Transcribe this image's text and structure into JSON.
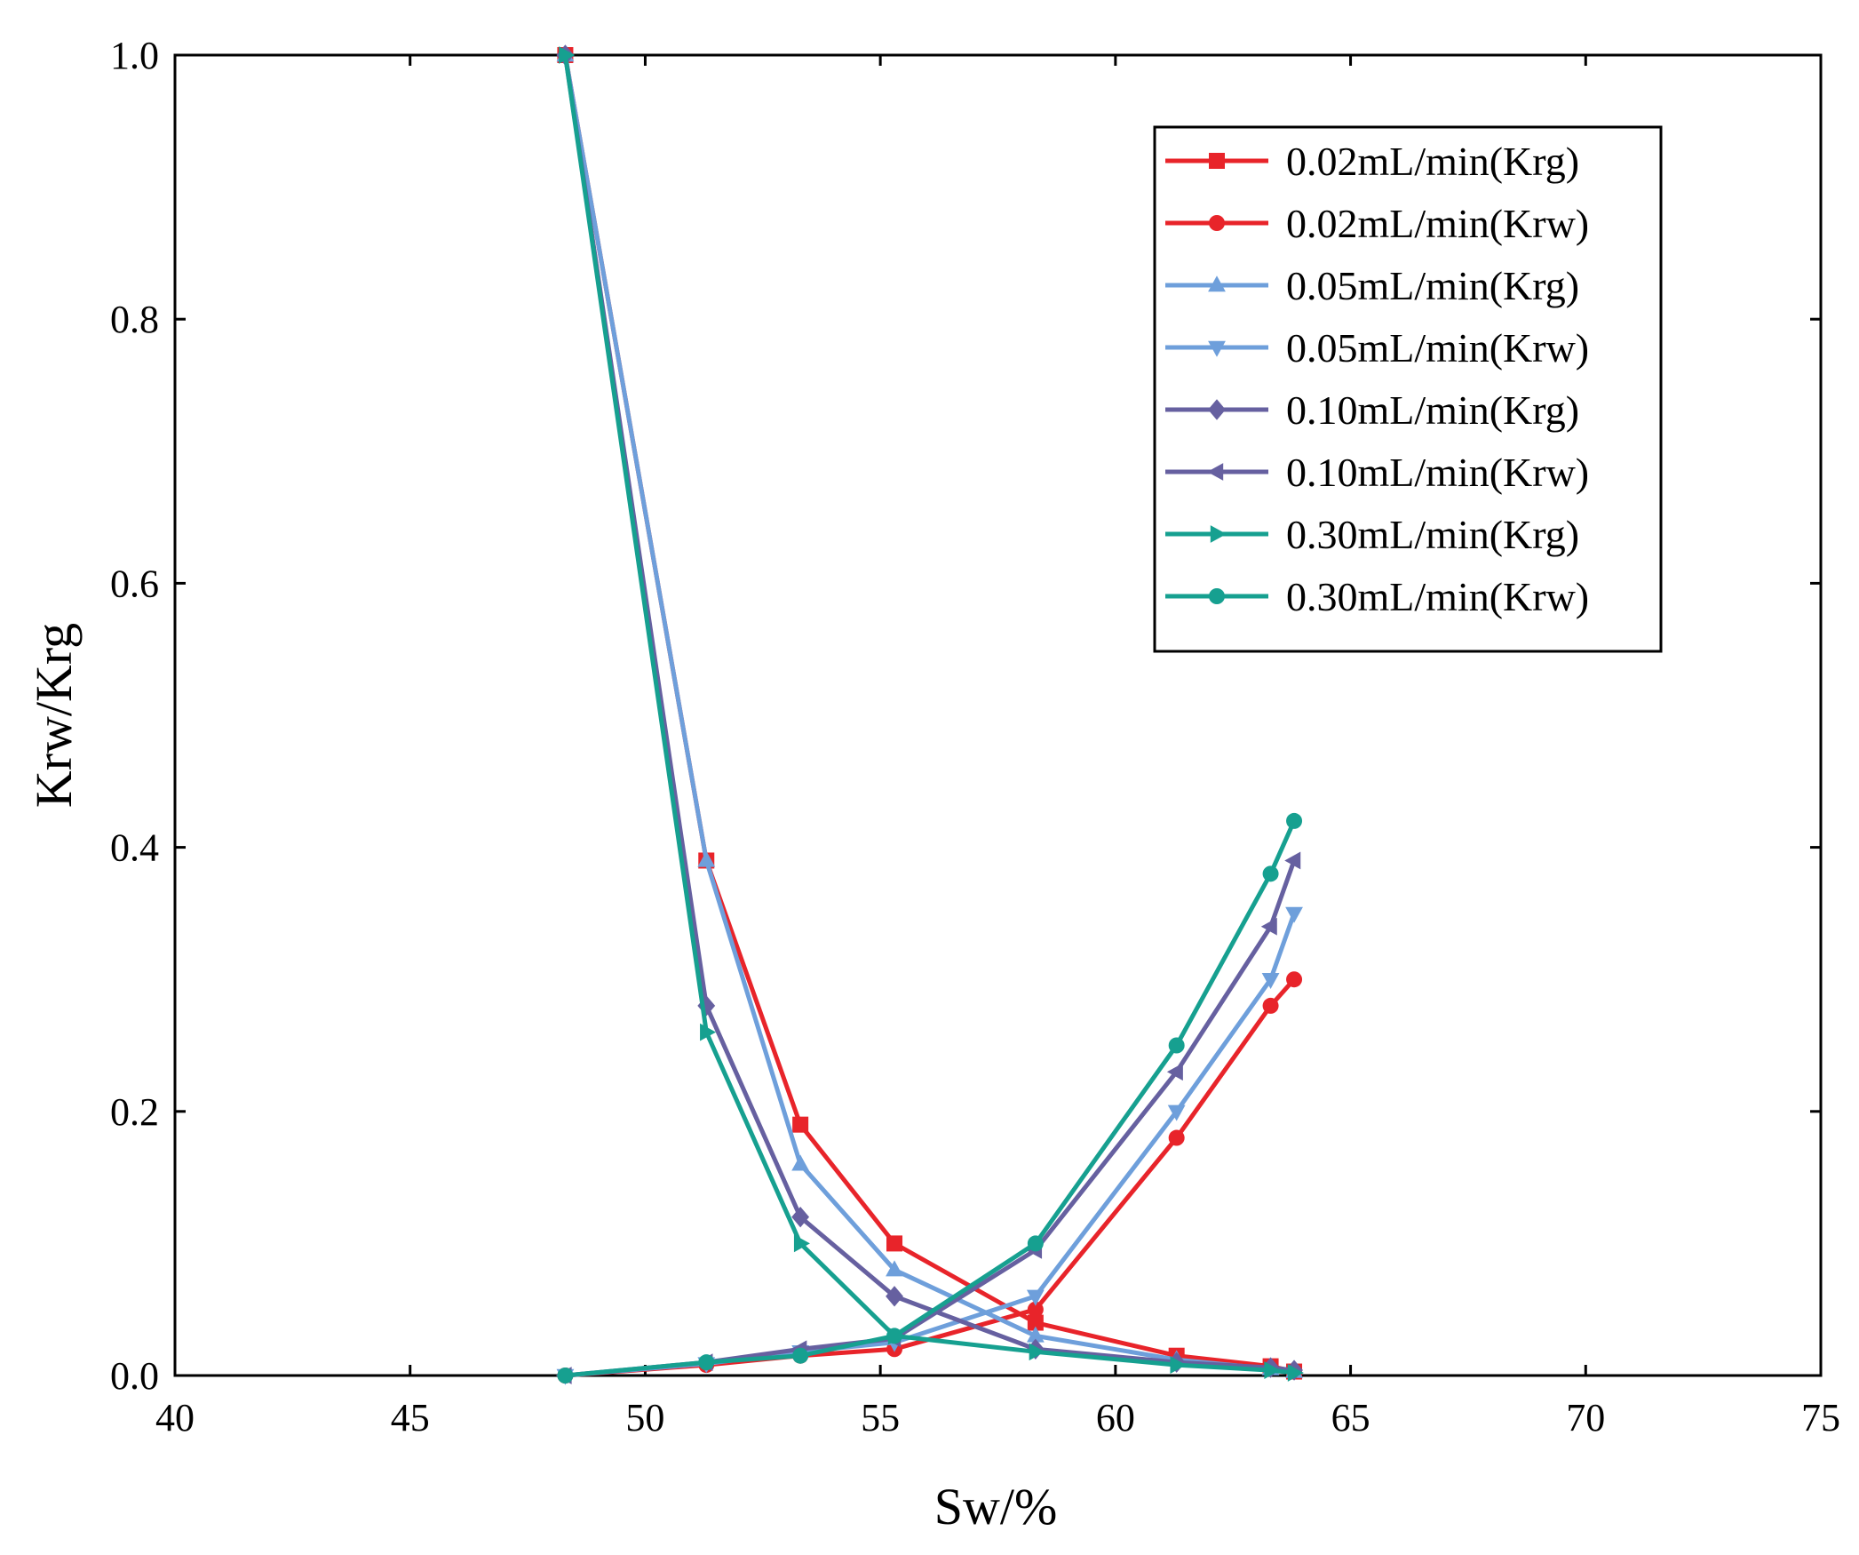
{
  "chart_data": {
    "type": "line",
    "xlabel": "Sw/%",
    "ylabel": "Krw/Krg",
    "xlim": [
      40,
      75
    ],
    "ylim": [
      0.0,
      1.0
    ],
    "x_ticks": [
      "40",
      "45",
      "50",
      "55",
      "60",
      "65",
      "70",
      "75"
    ],
    "y_ticks": [
      "0.0",
      "0.2",
      "0.4",
      "0.6",
      "0.8",
      "1.0"
    ],
    "legend_position": "top-right",
    "series": [
      {
        "name": "0.02mL/min(Krg)",
        "color": "#e8242a",
        "marker": "square",
        "x": [
          48.3,
          51.3,
          53.3,
          55.3,
          58.3,
          61.3,
          63.3,
          63.8
        ],
        "y": [
          1.0,
          0.39,
          0.19,
          0.1,
          0.04,
          0.015,
          0.007,
          0.003
        ]
      },
      {
        "name": "0.02mL/min(Krw)",
        "color": "#e8242a",
        "marker": "circle",
        "x": [
          48.3,
          51.3,
          53.3,
          55.3,
          58.3,
          61.3,
          63.3,
          63.8
        ],
        "y": [
          0.0,
          0.008,
          0.015,
          0.02,
          0.05,
          0.18,
          0.28,
          0.3
        ]
      },
      {
        "name": "0.05mL/min(Krg)",
        "color": "#6e9fdb",
        "marker": "triangle-up",
        "x": [
          48.3,
          51.3,
          53.3,
          55.3,
          58.3,
          61.3,
          63.3,
          63.8
        ],
        "y": [
          1.0,
          0.39,
          0.16,
          0.08,
          0.03,
          0.012,
          0.005,
          0.003
        ]
      },
      {
        "name": "0.05mL/min(Krw)",
        "color": "#6e9fdb",
        "marker": "triangle-down",
        "x": [
          48.3,
          51.3,
          53.3,
          55.3,
          58.3,
          61.3,
          63.3,
          63.8
        ],
        "y": [
          0.0,
          0.009,
          0.018,
          0.025,
          0.06,
          0.2,
          0.3,
          0.35
        ]
      },
      {
        "name": "0.10mL/min(Krg)",
        "color": "#6660a0",
        "marker": "diamond",
        "x": [
          48.3,
          51.3,
          53.3,
          55.3,
          58.3,
          61.3,
          63.3,
          63.8
        ],
        "y": [
          1.0,
          0.28,
          0.12,
          0.06,
          0.02,
          0.01,
          0.006,
          0.004
        ]
      },
      {
        "name": "0.10mL/min(Krw)",
        "color": "#6660a0",
        "marker": "triangle-left",
        "x": [
          48.3,
          51.3,
          53.3,
          55.3,
          58.3,
          61.3,
          63.3,
          63.8
        ],
        "y": [
          0.0,
          0.01,
          0.02,
          0.028,
          0.095,
          0.23,
          0.34,
          0.39
        ]
      },
      {
        "name": "0.30mL/min(Krg)",
        "color": "#16a090",
        "marker": "triangle-right",
        "x": [
          48.3,
          51.3,
          53.3,
          55.3,
          58.3,
          61.3,
          63.3,
          63.8
        ],
        "y": [
          1.0,
          0.26,
          0.1,
          0.03,
          0.018,
          0.008,
          0.004,
          0.002
        ]
      },
      {
        "name": "0.30mL/min(Krw)",
        "color": "#16a090",
        "marker": "circle",
        "x": [
          48.3,
          51.3,
          53.3,
          55.3,
          58.3,
          61.3,
          63.3,
          63.8
        ],
        "y": [
          0.0,
          0.01,
          0.015,
          0.03,
          0.1,
          0.25,
          0.38,
          0.42
        ]
      }
    ]
  }
}
